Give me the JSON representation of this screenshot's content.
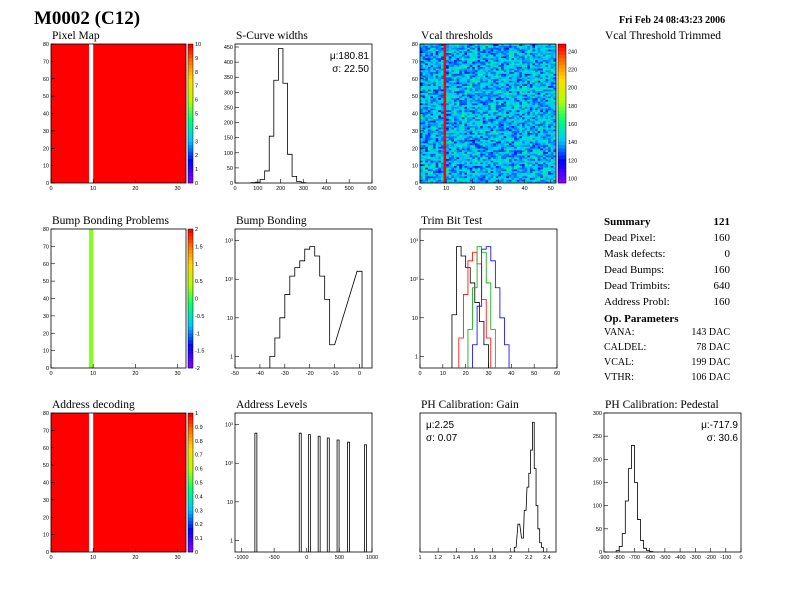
{
  "header": {
    "title": "M0002 (C12)",
    "timestamp": "Fri Feb 24 08:43:23 2006"
  },
  "chart_data": [
    {
      "id": "pixel-map",
      "type": "heatmap",
      "title": "Pixel Map",
      "x_ticks": [
        0,
        10,
        20,
        30
      ],
      "y_ticks": [
        0,
        10,
        20,
        30,
        40,
        50,
        60,
        70,
        80
      ],
      "z_ticks": [
        0,
        1,
        2,
        3,
        4,
        5,
        6,
        7,
        8,
        9,
        10
      ],
      "xlim": [
        0,
        32
      ],
      "ylim": [
        0,
        80
      ],
      "zlim": [
        0,
        10
      ],
      "fill_value": 10,
      "dead_columns": [
        9
      ]
    },
    {
      "id": "scurve-widths",
      "type": "histogram",
      "title": "S-Curve widths",
      "x_ticks": [
        0,
        100,
        200,
        300,
        400,
        500,
        600
      ],
      "y_ticks": [
        0,
        50,
        100,
        150,
        200,
        250,
        300,
        350,
        400,
        450
      ],
      "xlim": [
        0,
        600
      ],
      "ylim": [
        0,
        460
      ],
      "bins": {
        "x": [
          80,
          100,
          120,
          140,
          160,
          180,
          200,
          220,
          240,
          260,
          280,
          300
        ],
        "y": [
          1,
          3,
          12,
          40,
          155,
          340,
          445,
          330,
          95,
          22,
          5,
          1
        ]
      },
      "stats": {
        "mean": "μ:180.81",
        "sigma": "σ: 22.50"
      }
    },
    {
      "id": "vcal-thresholds",
      "type": "heatmap",
      "title": "Vcal thresholds",
      "x_ticks": [
        0,
        10,
        20,
        30,
        40,
        50
      ],
      "y_ticks": [
        0,
        10,
        20,
        30,
        40,
        50,
        60,
        70,
        80
      ],
      "z_ticks": [
        100,
        120,
        140,
        160,
        180,
        200,
        220,
        240
      ],
      "xlim": [
        0,
        52
      ],
      "ylim": [
        0,
        80
      ],
      "zlim": [
        95,
        248
      ],
      "center_value": 140,
      "hot_columns": [
        9
      ],
      "hot_value": 248
    },
    {
      "id": "vcal-trimmed",
      "type": "heatmap",
      "title": "Vcal Threshold Trimmed"
    },
    {
      "id": "bump-bonding-problems",
      "type": "heatmap",
      "title": "Bump Bonding Problems",
      "x_ticks": [
        0,
        10,
        20,
        30
      ],
      "y_ticks": [
        0,
        10,
        20,
        30,
        40,
        50,
        60,
        70,
        80
      ],
      "z_ticks": [
        -2,
        -1.5,
        -1,
        -0.5,
        0,
        0.5,
        1,
        1.5,
        2
      ],
      "xlim": [
        0,
        32
      ],
      "ylim": [
        0,
        80
      ],
      "zlim": [
        -2,
        2
      ],
      "fill_value": 0,
      "flag_columns": [
        9
      ],
      "flag_value": 0.25
    },
    {
      "id": "bump-bonding",
      "type": "histogram",
      "title": "Bump Bonding",
      "log_y": true,
      "x_ticks": [
        -50,
        -40,
        -30,
        -20,
        -10,
        0
      ],
      "xlim": [
        -50,
        5
      ],
      "ylim": [
        0.5,
        2000
      ],
      "y_ticks": [
        1,
        10,
        100,
        1000
      ],
      "y_tick_labels": [
        "1",
        "10",
        "10²",
        "10³"
      ],
      "bins": {
        "x": [
          -35,
          -33,
          -31,
          -29,
          -27,
          -25,
          -23,
          -21,
          -19,
          -17,
          -15,
          -13,
          -11,
          0
        ],
        "y": [
          1,
          3,
          10,
          40,
          120,
          200,
          300,
          600,
          700,
          400,
          120,
          30,
          2,
          160
        ]
      }
    },
    {
      "id": "trim-bit-test",
      "type": "histogram",
      "title": "Trim Bit Test",
      "log_y": true,
      "x_ticks": [
        0,
        10,
        20,
        30,
        40,
        50,
        60
      ],
      "xlim": [
        0,
        60
      ],
      "ylim": [
        0.5,
        2000
      ],
      "y_ticks": [
        1,
        10,
        100,
        1000
      ],
      "y_tick_labels": [
        "1",
        "10",
        "10²",
        "10³"
      ],
      "series": [
        {
          "color": "#000000",
          "x": [
            15,
            17,
            19,
            21,
            23,
            25,
            27,
            29
          ],
          "y": [
            12,
            700,
            400,
            200,
            80,
            25,
            8,
            2
          ]
        },
        {
          "color": "#ff0000",
          "x": [
            18,
            20,
            22,
            24,
            26,
            28,
            30
          ],
          "y": [
            3,
            40,
            300,
            500,
            250,
            30,
            3
          ]
        },
        {
          "color": "#00aa00",
          "x": [
            22,
            24,
            26,
            28,
            30,
            32
          ],
          "y": [
            5,
            60,
            700,
            500,
            80,
            5
          ]
        },
        {
          "color": "#0000ff",
          "x": [
            24,
            26,
            28,
            30,
            32,
            34,
            36,
            38
          ],
          "y": [
            2,
            20,
            600,
            700,
            300,
            60,
            10,
            2
          ]
        }
      ]
    },
    {
      "id": "address-decoding",
      "type": "heatmap",
      "title": "Address decoding",
      "x_ticks": [
        0,
        10,
        20,
        30
      ],
      "y_ticks": [
        0,
        10,
        20,
        30,
        40,
        50,
        60,
        70,
        80
      ],
      "z_ticks": [
        0,
        0.1,
        0.2,
        0.3,
        0.4,
        0.5,
        0.6,
        0.7,
        0.8,
        0.9,
        1
      ],
      "xlim": [
        0,
        32
      ],
      "ylim": [
        0,
        80
      ],
      "zlim": [
        0,
        1
      ],
      "fill_value": 1,
      "dead_columns": [
        9
      ]
    },
    {
      "id": "address-levels",
      "type": "histogram",
      "title": "Address Levels",
      "log_y": true,
      "x_ticks": [
        -1000,
        -500,
        0,
        500,
        1000
      ],
      "xlim": [
        -1100,
        1000
      ],
      "ylim": [
        0.5,
        2000
      ],
      "y_ticks": [
        1,
        10,
        100,
        1000
      ],
      "y_tick_labels": [
        "1",
        "10",
        "10²",
        "10³"
      ],
      "peaks": {
        "x": [
          -780,
          -100,
          40,
          190,
          330,
          480,
          640,
          900
        ],
        "y": [
          600,
          600,
          550,
          500,
          450,
          400,
          350,
          300
        ]
      }
    },
    {
      "id": "ph-gain",
      "type": "histogram",
      "title": "PH Calibration: Gain",
      "x_ticks": [
        1,
        1.2,
        1.4,
        1.6,
        1.8,
        2,
        2.2,
        2.4
      ],
      "xlim": [
        1,
        2.5
      ],
      "ylim": [
        0,
        30
      ],
      "y_ticks": [],
      "bins": {
        "x": [
          2.05,
          2.09,
          2.13,
          2.16,
          2.19,
          2.21,
          2.23,
          2.25,
          2.27,
          2.29,
          2.31,
          2.33,
          2.35
        ],
        "y": [
          1,
          6,
          3,
          9,
          14,
          17,
          22,
          28,
          18,
          10,
          5,
          2,
          1
        ]
      },
      "stats": {
        "mean": "μ:2.25",
        "sigma": "σ: 0.07"
      }
    },
    {
      "id": "ph-pedestal",
      "type": "histogram",
      "title": "PH Calibration: Pedestal",
      "x_ticks": [
        -900,
        -800,
        -700,
        -600,
        -500,
        -400,
        -300,
        -200,
        -100,
        0
      ],
      "xlim": [
        -900,
        0
      ],
      "ylim": [
        0,
        300
      ],
      "y_ticks": [
        0,
        50,
        100,
        150,
        200,
        250,
        300
      ],
      "bins": {
        "x": [
          -810,
          -790,
          -770,
          -750,
          -730,
          -710,
          -690,
          -670,
          -650,
          -630,
          -610,
          -590
        ],
        "y": [
          3,
          12,
          40,
          110,
          180,
          230,
          150,
          70,
          25,
          8,
          3,
          1
        ]
      },
      "stats": {
        "mean": "μ:-717.9",
        "sigma": "σ: 30.6"
      }
    }
  ],
  "summary": {
    "title": "Summary",
    "title_value": "121",
    "rows": [
      {
        "label": "Dead Pixel:",
        "value": "160"
      },
      {
        "label": "Mask defects:",
        "value": "0"
      },
      {
        "label": "Dead Bumps:",
        "value": "160"
      },
      {
        "label": "Dead Trimbits:",
        "value": "640"
      },
      {
        "label": "Address Probl:",
        "value": "160"
      }
    ],
    "op_title": "Op. Parameters",
    "op_rows": [
      {
        "label": "VANA:",
        "value": "143 DAC"
      },
      {
        "label": "CALDEL:",
        "value": "78 DAC"
      },
      {
        "label": "VCAL:",
        "value": "199 DAC"
      },
      {
        "label": "VTHR:",
        "value": "106 DAC"
      }
    ]
  }
}
